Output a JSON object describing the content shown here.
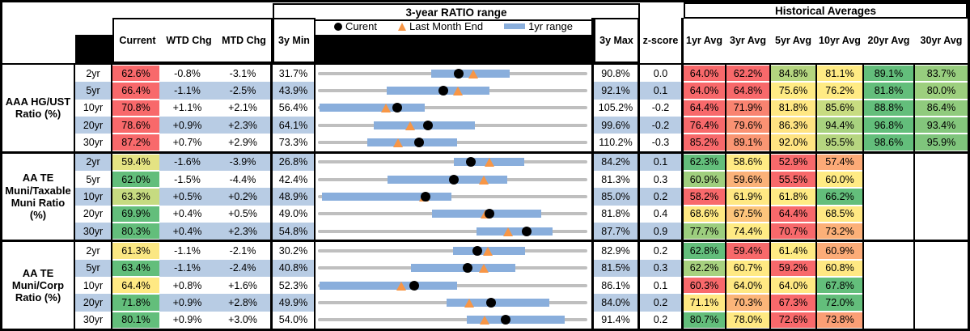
{
  "header": {
    "range_title": "3-year RATIO range",
    "hist_title": "Historical Averages",
    "legend": {
      "current": "Curent",
      "last_month": "Last Month End",
      "range_1yr": "1yr range"
    },
    "cols": {
      "current": "Current",
      "wtd": "WTD Chg",
      "mtd": "MTD Chg",
      "min": "3y Min",
      "max": "3y Max",
      "z": "z-score",
      "avgs": [
        "1yr Avg",
        "3yr Avg",
        "5yr Avg",
        "10yr Avg",
        "20yr Avg",
        "30yr Avg"
      ]
    }
  },
  "colors": {
    "stripe": "#B8CCE4",
    "range_bar": "#89AEDC",
    "track": "#BFBFBF",
    "dot": "#000000",
    "triangle": "#F79646",
    "heat_red": "#F8696B",
    "heat_yellow": "#FFEB84",
    "heat_green": "#63BE7B"
  },
  "chart_data": {
    "type": "table",
    "description": "Municipal ratio dashboard. Each row shows Current/WTD/MTD values, a 3-year min-max range track with 1-year range bar (values in %), current dot, last-month-end triangle, z-score and historical averages with heatmap colors.",
    "groups": [
      {
        "label": "AAA HG/UST\nRatio (%)",
        "rows": [
          {
            "tenor": "2yr",
            "current": "62.6%",
            "current_bg": "#F8696B",
            "wtd": "-0.8%",
            "mtd": "-3.1%",
            "min": "31.7%",
            "max": "90.8%",
            "z": "0.0",
            "min_n": 31.7,
            "max_n": 90.8,
            "cur_n": 62.6,
            "lme_n": 65.7,
            "bar1yr": [
              56.6,
              73.7
            ],
            "avgs": [
              {
                "v": "64.0%",
                "bg": "#F8696B"
              },
              {
                "v": "62.2%",
                "bg": "#F8696B"
              },
              {
                "v": "84.8%",
                "bg": "#B4D57F"
              },
              {
                "v": "81.1%",
                "bg": "#FFEB84"
              },
              {
                "v": "89.1%",
                "bg": "#63BE7B"
              },
              {
                "v": "83.7%",
                "bg": "#97CD7E"
              }
            ]
          },
          {
            "tenor": "5yr",
            "current": "66.4%",
            "current_bg": "#F8696B",
            "wtd": "-1.1%",
            "mtd": "-2.5%",
            "min": "43.9%",
            "max": "92.1%",
            "z": "0.1",
            "min_n": 43.9,
            "max_n": 92.1,
            "cur_n": 66.4,
            "lme_n": 68.9,
            "bar1yr": [
              56.2,
              74.6
            ],
            "avgs": [
              {
                "v": "64.0%",
                "bg": "#F8696B"
              },
              {
                "v": "64.8%",
                "bg": "#F8696B"
              },
              {
                "v": "75.6%",
                "bg": "#FFEB84"
              },
              {
                "v": "76.2%",
                "bg": "#FFEB84"
              },
              {
                "v": "81.8%",
                "bg": "#63BE7B"
              },
              {
                "v": "80.0%",
                "bg": "#9DCF7E"
              }
            ]
          },
          {
            "tenor": "10yr",
            "current": "70.8%",
            "current_bg": "#F8696B",
            "wtd": "+1.1%",
            "mtd": "+2.1%",
            "min": "56.4%",
            "max": "105.2%",
            "z": "-0.2",
            "min_n": 56.4,
            "max_n": 105.2,
            "cur_n": 70.8,
            "lme_n": 68.7,
            "bar1yr": [
              56.7,
              75.8
            ],
            "avgs": [
              {
                "v": "64.4%",
                "bg": "#F8696B"
              },
              {
                "v": "71.9%",
                "bg": "#F98370"
              },
              {
                "v": "81.8%",
                "bg": "#FFE783"
              },
              {
                "v": "85.6%",
                "bg": "#C8DC81"
              },
              {
                "v": "88.8%",
                "bg": "#63BE7B"
              },
              {
                "v": "86.4%",
                "bg": "#90CB7D"
              }
            ]
          },
          {
            "tenor": "20yr",
            "current": "78.6%",
            "current_bg": "#F8696B",
            "wtd": "+0.9%",
            "mtd": "+2.3%",
            "min": "64.1%",
            "max": "99.6%",
            "z": "-0.2",
            "min_n": 64.1,
            "max_n": 99.6,
            "cur_n": 78.6,
            "lme_n": 76.3,
            "bar1yr": [
              71.4,
              84.8
            ],
            "avgs": [
              {
                "v": "76.4%",
                "bg": "#F8696B"
              },
              {
                "v": "79.6%",
                "bg": "#FA9273"
              },
              {
                "v": "86.3%",
                "bg": "#FFE382"
              },
              {
                "v": "94.4%",
                "bg": "#A8D27F"
              },
              {
                "v": "96.8%",
                "bg": "#63BE7B"
              },
              {
                "v": "93.4%",
                "bg": "#84C67C"
              }
            ]
          },
          {
            "tenor": "30yr",
            "current": "87.2%",
            "current_bg": "#F8696B",
            "wtd": "+0.7%",
            "mtd": "+2.9%",
            "min": "73.3%",
            "max": "110.2%",
            "z": "-0.3",
            "min_n": 73.3,
            "max_n": 110.2,
            "cur_n": 87.2,
            "lme_n": 84.3,
            "bar1yr": [
              80.0,
              92.4
            ],
            "avgs": [
              {
                "v": "85.2%",
                "bg": "#F8696B"
              },
              {
                "v": "89.1%",
                "bg": "#FA9673"
              },
              {
                "v": "92.0%",
                "bg": "#FFE482"
              },
              {
                "v": "95.5%",
                "bg": "#B6D680"
              },
              {
                "v": "98.6%",
                "bg": "#63BE7B"
              },
              {
                "v": "95.9%",
                "bg": "#7FC57C"
              }
            ]
          }
        ]
      },
      {
        "label": "AA TE\nMuni/Taxable\nMuni Ratio\n(%)",
        "rows": [
          {
            "tenor": "2yr",
            "current": "59.4%",
            "current_bg": "#E4E383",
            "wtd": "-1.6%",
            "mtd": "-3.9%",
            "min": "26.8%",
            "max": "84.2%",
            "z": "0.1",
            "min_n": 26.8,
            "max_n": 84.2,
            "cur_n": 59.4,
            "lme_n": 63.3,
            "bar1yr": [
              55.7,
              70.7
            ],
            "avgs": [
              {
                "v": "62.3%",
                "bg": "#63BE7B"
              },
              {
                "v": "58.6%",
                "bg": "#FFEB84"
              },
              {
                "v": "52.9%",
                "bg": "#F8696B"
              },
              {
                "v": "57.4%",
                "bg": "#FCAA77"
              },
              null,
              null
            ]
          },
          {
            "tenor": "5yr",
            "current": "62.0%",
            "current_bg": "#63BE7B",
            "wtd": "-1.5%",
            "mtd": "-4.4%",
            "min": "42.4%",
            "max": "81.3%",
            "z": "0.3",
            "min_n": 42.4,
            "max_n": 81.3,
            "cur_n": 62.0,
            "lme_n": 66.4,
            "bar1yr": [
              52.4,
              69.7
            ],
            "avgs": [
              {
                "v": "60.9%",
                "bg": "#A0CF7E"
              },
              {
                "v": "59.6%",
                "bg": "#FBB279"
              },
              {
                "v": "55.5%",
                "bg": "#F8696B"
              },
              {
                "v": "60.0%",
                "bg": "#FFEB84"
              },
              null,
              null
            ]
          },
          {
            "tenor": "10yr",
            "current": "63.3%",
            "current_bg": "#C6DB81",
            "wtd": "+0.5%",
            "mtd": "+0.2%",
            "min": "48.9%",
            "max": "85.0%",
            "z": "0.2",
            "min_n": 48.9,
            "max_n": 85.0,
            "cur_n": 63.3,
            "lme_n": 63.1,
            "bar1yr": [
              49.4,
              66.8
            ],
            "avgs": [
              {
                "v": "58.2%",
                "bg": "#F8696B"
              },
              {
                "v": "61.9%",
                "bg": "#FFE883"
              },
              {
                "v": "61.8%",
                "bg": "#FFEB84"
              },
              {
                "v": "66.2%",
                "bg": "#63BE7B"
              },
              null,
              null
            ]
          },
          {
            "tenor": "20yr",
            "current": "69.9%",
            "current_bg": "#63BE7B",
            "wtd": "+0.4%",
            "mtd": "+0.5%",
            "min": "49.0%",
            "max": "81.8%",
            "z": "0.4",
            "min_n": 49.0,
            "max_n": 81.8,
            "cur_n": 69.9,
            "lme_n": 69.4,
            "bar1yr": [
              62.9,
              76.2
            ],
            "avgs": [
              {
                "v": "68.6%",
                "bg": "#FFE983"
              },
              {
                "v": "67.5%",
                "bg": "#FDC57C"
              },
              {
                "v": "64.4%",
                "bg": "#F8696B"
              },
              {
                "v": "68.5%",
                "bg": "#FFE983"
              },
              null,
              null
            ]
          },
          {
            "tenor": "30yr",
            "current": "80.3%",
            "current_bg": "#63BE7B",
            "wtd": "+0.4%",
            "mtd": "+2.3%",
            "min": "54.8%",
            "max": "87.7%",
            "z": "0.9",
            "min_n": 54.8,
            "max_n": 87.7,
            "cur_n": 80.3,
            "lme_n": 78.0,
            "bar1yr": [
              74.2,
              83.5
            ],
            "avgs": [
              {
                "v": "77.7%",
                "bg": "#9CCE7E"
              },
              {
                "v": "74.4%",
                "bg": "#FFEB84"
              },
              {
                "v": "70.7%",
                "bg": "#F8696B"
              },
              {
                "v": "73.2%",
                "bg": "#FCB078"
              },
              null,
              null
            ]
          }
        ]
      },
      {
        "label": "AA TE\nMuni/Corp\nRatio (%)",
        "rows": [
          {
            "tenor": "2yr",
            "current": "61.3%",
            "current_bg": "#FBE783",
            "wtd": "-1.1%",
            "mtd": "-2.1%",
            "min": "30.2%",
            "max": "82.9%",
            "z": "0.2",
            "min_n": 30.2,
            "max_n": 82.9,
            "cur_n": 61.3,
            "lme_n": 63.4,
            "bar1yr": [
              56.7,
              70.7
            ],
            "avgs": [
              {
                "v": "62.8%",
                "bg": "#63BE7B"
              },
              {
                "v": "59.4%",
                "bg": "#F8696B"
              },
              {
                "v": "61.4%",
                "bg": "#FFEB84"
              },
              {
                "v": "60.9%",
                "bg": "#FCAC78"
              },
              null,
              null
            ]
          },
          {
            "tenor": "5yr",
            "current": "63.4%",
            "current_bg": "#63BE7B",
            "wtd": "-1.1%",
            "mtd": "-2.4%",
            "min": "40.8%",
            "max": "81.5%",
            "z": "0.3",
            "min_n": 40.8,
            "max_n": 81.5,
            "cur_n": 63.4,
            "lme_n": 65.8,
            "bar1yr": [
              54.9,
              70.6
            ],
            "avgs": [
              {
                "v": "62.2%",
                "bg": "#A7D17F"
              },
              {
                "v": "60.7%",
                "bg": "#FFE983"
              },
              {
                "v": "59.2%",
                "bg": "#F8696B"
              },
              {
                "v": "60.8%",
                "bg": "#FFE883"
              },
              null,
              null
            ]
          },
          {
            "tenor": "10yr",
            "current": "64.4%",
            "current_bg": "#FFE983",
            "wtd": "+0.8%",
            "mtd": "+1.6%",
            "min": "52.3%",
            "max": "86.1%",
            "z": "0.1",
            "min_n": 52.3,
            "max_n": 86.1,
            "cur_n": 64.4,
            "lme_n": 62.8,
            "bar1yr": [
              52.5,
              69.8
            ],
            "avgs": [
              {
                "v": "60.3%",
                "bg": "#F8696B"
              },
              {
                "v": "64.0%",
                "bg": "#FFE883"
              },
              {
                "v": "64.0%",
                "bg": "#FFE983"
              },
              {
                "v": "67.8%",
                "bg": "#63BE7B"
              },
              null,
              null
            ]
          },
          {
            "tenor": "20yr",
            "current": "71.8%",
            "current_bg": "#63BE7B",
            "wtd": "+0.9%",
            "mtd": "+2.8%",
            "min": "49.9%",
            "max": "84.0%",
            "z": "0.2",
            "min_n": 49.9,
            "max_n": 84.0,
            "cur_n": 71.8,
            "lme_n": 69.0,
            "bar1yr": [
              66.2,
              79.2
            ],
            "avgs": [
              {
                "v": "71.1%",
                "bg": "#FFE983"
              },
              {
                "v": "70.3%",
                "bg": "#FCB579"
              },
              {
                "v": "67.3%",
                "bg": "#F8696B"
              },
              {
                "v": "72.0%",
                "bg": "#63BE7B"
              },
              null,
              null
            ]
          },
          {
            "tenor": "30yr",
            "current": "80.1%",
            "current_bg": "#63BE7B",
            "wtd": "+0.9%",
            "mtd": "+3.0%",
            "min": "54.0%",
            "max": "91.4%",
            "z": "0.2",
            "min_n": 54.0,
            "max_n": 91.4,
            "cur_n": 80.1,
            "lme_n": 77.1,
            "bar1yr": [
              74.7,
              88.3
            ],
            "avgs": [
              {
                "v": "80.7%",
                "bg": "#63BE7B"
              },
              {
                "v": "78.0%",
                "bg": "#FFE983"
              },
              {
                "v": "72.6%",
                "bg": "#F8696B"
              },
              {
                "v": "73.8%",
                "bg": "#FB9F75"
              },
              null,
              null
            ]
          }
        ]
      }
    ]
  }
}
